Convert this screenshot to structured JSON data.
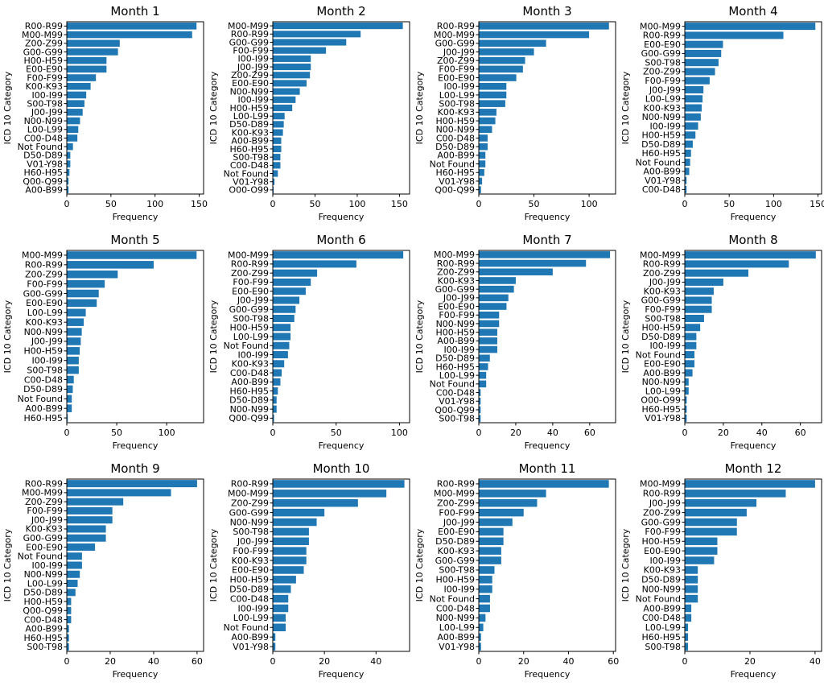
{
  "chart_data": [
    {
      "type": "bar",
      "orientation": "horizontal",
      "title": "Month 1",
      "xlabel": "Frequency",
      "ylabel": "ICD 10 Category",
      "xlim": [
        0,
        155
      ],
      "xticks": [
        0,
        50,
        100,
        150
      ],
      "categories": [
        "R00-R99",
        "M00-M99",
        "Z00-Z99",
        "G00-G99",
        "H00-H59",
        "E00-E90",
        "F00-F99",
        "K00-K93",
        "I00-I99",
        "S00-T98",
        "J00-J99",
        "N00-N99",
        "L00-L99",
        "C00-D48",
        "Not Found",
        "D50-D89",
        "V01-Y98",
        "H60-H95",
        "Q00-Q99",
        "A00-B99"
      ],
      "values": [
        147,
        142,
        60,
        58,
        45,
        45,
        33,
        27,
        22,
        20,
        18,
        15,
        13,
        12,
        7,
        4,
        4,
        3,
        2,
        2
      ]
    },
    {
      "type": "bar",
      "orientation": "horizontal",
      "title": "Month 2",
      "xlabel": "Frequency",
      "ylabel": "ICD 10 Category",
      "xlim": [
        0,
        162
      ],
      "xticks": [
        0,
        50,
        100,
        150
      ],
      "categories": [
        "M00-M99",
        "R00-R99",
        "G00-G99",
        "F00-F99",
        "I00-I99",
        "J00-J99",
        "Z00-Z99",
        "E00-E90",
        "N00-N99",
        "I00-I99",
        "H00-H59",
        "L00-L99",
        "D50-D89",
        "K00-K93",
        "A00-B99",
        "H60-H95",
        "S00-T98",
        "C00-D48",
        "Not Found",
        "V01-Y98",
        "O00-O99"
      ],
      "values": [
        154,
        104,
        87,
        63,
        45,
        45,
        44,
        40,
        32,
        27,
        23,
        14,
        13,
        12,
        10,
        10,
        9,
        9,
        6,
        2,
        1
      ]
    },
    {
      "type": "bar",
      "orientation": "horizontal",
      "title": "Month 3",
      "xlabel": "Frequency",
      "ylabel": "ICD 10 Category",
      "xlim": [
        0,
        124
      ],
      "xticks": [
        0,
        50,
        100
      ],
      "categories": [
        "R00-R99",
        "M00-M99",
        "G00-G99",
        "J00-J99",
        "Z00-Z99",
        "F00-F99",
        "E00-E90",
        "I00-I99",
        "L00-L99",
        "S00-T98",
        "K00-K93",
        "H00-H59",
        "N00-N99",
        "C00-D48",
        "D50-D89",
        "A00-B99",
        "Not Found",
        "H60-H95",
        "V01-Y98",
        "Q00-Q99"
      ],
      "values": [
        118,
        100,
        61,
        50,
        42,
        40,
        34,
        25,
        25,
        24,
        16,
        15,
        12,
        8,
        8,
        6,
        6,
        5,
        3,
        2
      ]
    },
    {
      "type": "bar",
      "orientation": "horizontal",
      "title": "Month 4",
      "xlabel": "Frequency",
      "ylabel": "ICD 10 Category",
      "xlim": [
        0,
        154
      ],
      "xticks": [
        0,
        50,
        100,
        150
      ],
      "categories": [
        "M00-M99",
        "R00-R99",
        "E00-E90",
        "G00-G99",
        "S00-T98",
        "Z00-Z99",
        "F00-F99",
        "J00-J99",
        "L00-L99",
        "K00-K93",
        "N00-N99",
        "I00-I99",
        "H00-H59",
        "D50-D89",
        "H60-H95",
        "Not Found",
        "A00-B99",
        "V01-Y98",
        "C00-D48"
      ],
      "values": [
        147,
        111,
        43,
        41,
        38,
        34,
        28,
        21,
        20,
        19,
        18,
        15,
        12,
        9,
        7,
        6,
        5,
        2,
        2
      ]
    },
    {
      "type": "bar",
      "orientation": "horizontal",
      "title": "Month 5",
      "xlabel": "Frequency",
      "ylabel": "ICD 10 Category",
      "xlim": [
        0,
        137
      ],
      "xticks": [
        0,
        50,
        100
      ],
      "categories": [
        "M00-M99",
        "R00-R99",
        "Z00-Z99",
        "F00-F99",
        "G00-G99",
        "E00-E90",
        "L00-L99",
        "K00-K93",
        "N00-N99",
        "J00-J99",
        "H00-H59",
        "I00-I99",
        "S00-T98",
        "C00-D48",
        "D50-D89",
        "Not Found",
        "A00-B99",
        "H60-H95"
      ],
      "values": [
        130,
        87,
        51,
        38,
        32,
        30,
        19,
        17,
        15,
        14,
        13,
        12,
        12,
        7,
        6,
        5,
        5,
        1
      ]
    },
    {
      "type": "bar",
      "orientation": "horizontal",
      "title": "Month 6",
      "xlabel": "Frequency",
      "ylabel": "ICD 10 Category",
      "xlim": [
        0,
        108
      ],
      "xticks": [
        0,
        50,
        100
      ],
      "categories": [
        "M00-M99",
        "R00-R99",
        "Z00-Z99",
        "F00-F99",
        "E00-E90",
        "J00-J99",
        "G00-G99",
        "S00-T98",
        "H00-H59",
        "L00-L99",
        "Not Found",
        "I00-I99",
        "K00-K93",
        "C00-D48",
        "A00-B99",
        "H60-H95",
        "D50-D89",
        "N00-N99",
        "Q00-Q99"
      ],
      "values": [
        103,
        66,
        35,
        30,
        26,
        21,
        18,
        17,
        14,
        14,
        13,
        12,
        9,
        7,
        6,
        4,
        3,
        3,
        1
      ]
    },
    {
      "type": "bar",
      "orientation": "horizontal",
      "title": "Month 7",
      "xlabel": "Frequency",
      "ylabel": "ICD 10 Category",
      "xlim": [
        0,
        74
      ],
      "xticks": [
        0,
        20,
        40,
        60
      ],
      "categories": [
        "M00-M99",
        "R00-R99",
        "Z00-Z99",
        "K00-K93",
        "G00-G99",
        "J00-J99",
        "E00-E90",
        "F00-F99",
        "N00-N99",
        "H00-H59",
        "A00-B99",
        "I00-I99",
        "D50-D89",
        "H60-H95",
        "L00-L99",
        "Not Found",
        "C00-D48",
        "V01-Y98",
        "Q00-Q99",
        "S00-T98"
      ],
      "values": [
        71,
        58,
        40,
        20,
        19,
        16,
        15,
        11,
        11,
        10,
        10,
        10,
        6,
        5,
        4,
        4,
        1,
        1,
        1,
        1
      ]
    },
    {
      "type": "bar",
      "orientation": "horizontal",
      "title": "Month 8",
      "xlabel": "Frequency",
      "ylabel": "ICD 10 Category",
      "xlim": [
        0,
        71
      ],
      "xticks": [
        0,
        20,
        40,
        60
      ],
      "categories": [
        "M00-M99",
        "R00-R99",
        "Z00-Z99",
        "J00-J99",
        "K00-K93",
        "G00-G99",
        "F00-F99",
        "S00-T98",
        "H00-H59",
        "D50-D89",
        "I00-I99",
        "Not Found",
        "E00-E90",
        "A00-B99",
        "N00-N99",
        "L00-L99",
        "O00-O99",
        "H60-H95",
        "V01-Y98"
      ],
      "values": [
        68,
        54,
        33,
        20,
        15,
        14,
        14,
        10,
        8,
        6,
        6,
        5,
        5,
        4,
        2,
        2,
        1,
        1,
        1
      ]
    },
    {
      "type": "bar",
      "orientation": "horizontal",
      "title": "Month 9",
      "xlabel": "Frequency",
      "ylabel": "ICD 10 Category",
      "xlim": [
        0,
        63
      ],
      "xticks": [
        0,
        20,
        40,
        60
      ],
      "categories": [
        "R00-R99",
        "M00-M99",
        "Z00-Z99",
        "F00-F99",
        "J00-J99",
        "K00-K93",
        "G00-G99",
        "E00-E90",
        "Not Found",
        "I00-I99",
        "N00-N99",
        "L00-L99",
        "D50-D89",
        "H00-H59",
        "Q00-Q99",
        "C00-D48",
        "A00-B99",
        "H60-H95",
        "S00-T98"
      ],
      "values": [
        60,
        48,
        26,
        21,
        21,
        18,
        18,
        13,
        7,
        7,
        6,
        5,
        4,
        2,
        2,
        2,
        1,
        1,
        1
      ]
    },
    {
      "type": "bar",
      "orientation": "horizontal",
      "title": "Month 10",
      "xlabel": "Frequency",
      "ylabel": "ICD 10 Category",
      "xlim": [
        0,
        53
      ],
      "xticks": [
        0,
        20,
        40
      ],
      "categories": [
        "R00-R99",
        "M00-M99",
        "Z00-Z99",
        "G00-G99",
        "N00-N99",
        "S00-T98",
        "J00-J99",
        "F00-F99",
        "K00-K93",
        "E00-E90",
        "H00-H59",
        "D50-D89",
        "C00-D48",
        "I00-I99",
        "L00-L99",
        "Not Found",
        "A00-B99",
        "V01-Y98"
      ],
      "values": [
        51,
        44,
        33,
        20,
        17,
        14,
        14,
        13,
        13,
        12,
        9,
        7,
        6,
        6,
        5,
        5,
        1,
        1
      ]
    },
    {
      "type": "bar",
      "orientation": "horizontal",
      "title": "Month 11",
      "xlabel": "Frequency",
      "ylabel": "ICD 10 Category",
      "xlim": [
        0,
        61
      ],
      "xticks": [
        0,
        20,
        40,
        60
      ],
      "categories": [
        "R00-R99",
        "M00-M99",
        "Z00-Z99",
        "F00-F99",
        "J00-J99",
        "E00-E90",
        "D50-D89",
        "K00-K93",
        "G00-G99",
        "S00-T98",
        "H00-H59",
        "I00-I99",
        "Not Found",
        "C00-D48",
        "N00-N99",
        "L00-L99",
        "A00-B99",
        "V01-Y98"
      ],
      "values": [
        58,
        30,
        26,
        20,
        15,
        11,
        11,
        10,
        10,
        7,
        6,
        6,
        5,
        5,
        3,
        2,
        1,
        1
      ]
    },
    {
      "type": "bar",
      "orientation": "horizontal",
      "title": "Month 12",
      "xlabel": "Frequency",
      "ylabel": "ICD 10 Category",
      "xlim": [
        0,
        42
      ],
      "xticks": [
        0,
        20,
        40
      ],
      "categories": [
        "M00-M99",
        "R00-R99",
        "J00-J99",
        "Z00-Z99",
        "G00-G99",
        "F00-F99",
        "H00-H59",
        "E00-E90",
        "I00-I99",
        "K00-K93",
        "D50-D89",
        "N00-N99",
        "Not Found",
        "A00-B99",
        "C00-D48",
        "L00-L99",
        "H60-H95",
        "S00-T98"
      ],
      "values": [
        40,
        31,
        22,
        19,
        16,
        16,
        10,
        10,
        9,
        4,
        4,
        4,
        4,
        2,
        2,
        1,
        1,
        1
      ]
    }
  ]
}
